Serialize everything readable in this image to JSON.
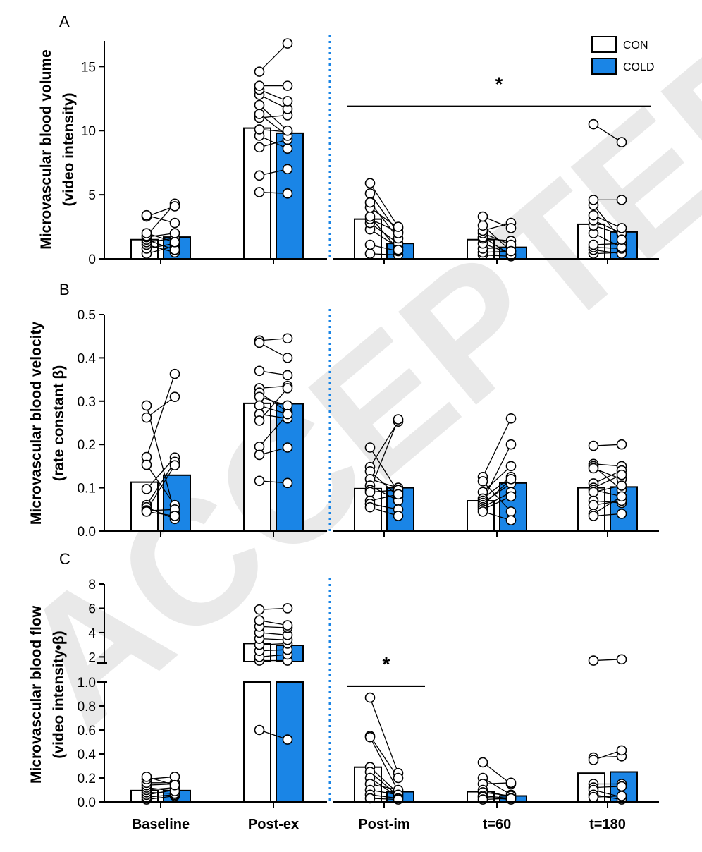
{
  "watermark": "ACCEPTED",
  "legend": [
    {
      "label": "CON",
      "color": "#ffffff"
    },
    {
      "label": "COLD",
      "color": "#1a85e6"
    }
  ],
  "x_labels": [
    "Baseline",
    "Post-ex",
    "Post-im",
    "t=60",
    "t=180"
  ],
  "chart_data": [
    {
      "type": "bar",
      "panel_label": "A",
      "title": "",
      "ylabel": [
        "Microvascular blood volume",
        "(video intensity)"
      ],
      "ylim": [
        0,
        17
      ],
      "yticks": [
        "0",
        "5",
        "10",
        "15"
      ],
      "categories": [
        "Baseline",
        "Post-ex",
        "Post-im",
        "t=60",
        "t=180"
      ],
      "series": [
        {
          "name": "CON",
          "values": [
            1.5,
            10.2,
            3.1,
            1.5,
            2.7
          ]
        },
        {
          "name": "COLD",
          "values": [
            1.7,
            9.8,
            1.2,
            0.9,
            2.1
          ]
        }
      ],
      "pairs": [
        [
          [
            0.4,
            1.0
          ],
          [
            0.8,
            1.2
          ],
          [
            1.1,
            0.5
          ],
          [
            1.3,
            1.6
          ],
          [
            1.5,
            0.7
          ],
          [
            1.7,
            2.0
          ],
          [
            1.8,
            4.3
          ],
          [
            2.0,
            1.3
          ],
          [
            3.3,
            4.1
          ],
          [
            3.4,
            2.8
          ]
        ],
        [
          [
            5.2,
            5.1
          ],
          [
            6.5,
            7.0
          ],
          [
            8.7,
            9.3
          ],
          [
            9.6,
            8.6
          ],
          [
            10.1,
            9.9
          ],
          [
            11.0,
            11.2
          ],
          [
            11.3,
            9.6
          ],
          [
            12.0,
            10.0
          ],
          [
            12.8,
            11.7
          ],
          [
            13.2,
            12.3
          ],
          [
            13.5,
            13.5
          ],
          [
            14.6,
            16.8
          ]
        ],
        [
          [
            0.4,
            0.3
          ],
          [
            1.1,
            0.6
          ],
          [
            2.3,
            0.9
          ],
          [
            2.8,
            1.2
          ],
          [
            3.1,
            2.1
          ],
          [
            3.3,
            0.7
          ],
          [
            4.0,
            2.4
          ],
          [
            4.4,
            1.6
          ],
          [
            5.1,
            2.0
          ],
          [
            5.9,
            2.5
          ]
        ],
        [
          [
            0.3,
            0.2
          ],
          [
            0.5,
            0.6
          ],
          [
            0.8,
            0.9
          ],
          [
            1.2,
            0.4
          ],
          [
            1.6,
            1.4
          ],
          [
            1.7,
            0.3
          ],
          [
            2.0,
            1.1
          ],
          [
            2.2,
            2.8
          ],
          [
            2.6,
            0.6
          ],
          [
            3.3,
            2.4
          ]
        ],
        [
          [
            0.4,
            0.5
          ],
          [
            0.7,
            0.4
          ],
          [
            0.9,
            0.8
          ],
          [
            1.1,
            1.2
          ],
          [
            2.0,
            0.9
          ],
          [
            2.6,
            1.9
          ],
          [
            3.0,
            2.0
          ],
          [
            3.4,
            2.4
          ],
          [
            4.2,
            1.5
          ],
          [
            4.6,
            4.6
          ],
          [
            10.5,
            9.1
          ]
        ]
      ],
      "annotations": [
        {
          "text": "*",
          "span": [
            "Post-im",
            "t=180"
          ],
          "y": 11.9
        }
      ]
    },
    {
      "type": "bar",
      "panel_label": "B",
      "title": "",
      "ylabel": [
        "Microvascular blood velocity",
        "(rate constant β)"
      ],
      "ylim": [
        0,
        0.5
      ],
      "yticks": [
        "0.0",
        "0.1",
        "0.2",
        "0.3",
        "0.4",
        "0.5"
      ],
      "categories": [
        "Baseline",
        "Post-ex",
        "Post-im",
        "t=60",
        "t=180"
      ],
      "series": [
        {
          "name": "CON",
          "values": [
            0.113,
            0.295,
            0.098,
            0.07,
            0.1
          ]
        },
        {
          "name": "COLD",
          "values": [
            0.129,
            0.294,
            0.1,
            0.111,
            0.102
          ]
        }
      ],
      "pairs": [
        [
          [
            0.29,
            0.04
          ],
          [
            0.262,
            0.31
          ],
          [
            0.171,
            0.363
          ],
          [
            0.153,
            0.06
          ],
          [
            0.097,
            0.17
          ],
          [
            0.06,
            0.16
          ],
          [
            0.055,
            0.028
          ],
          [
            0.048,
            0.152
          ],
          [
            0.047,
            0.05
          ],
          [
            0.045,
            0.035
          ]
        ],
        [
          [
            0.44,
            0.445
          ],
          [
            0.435,
            0.4
          ],
          [
            0.37,
            0.36
          ],
          [
            0.33,
            0.335
          ],
          [
            0.32,
            0.275
          ],
          [
            0.31,
            0.29
          ],
          [
            0.29,
            0.27
          ],
          [
            0.27,
            0.26
          ],
          [
            0.255,
            0.33
          ],
          [
            0.195,
            0.27
          ],
          [
            0.176,
            0.193
          ],
          [
            0.116,
            0.111
          ]
        ],
        [
          [
            0.193,
            0.09
          ],
          [
            0.148,
            0.253
          ],
          [
            0.138,
            0.08
          ],
          [
            0.12,
            0.1
          ],
          [
            0.105,
            0.07
          ],
          [
            0.095,
            0.258
          ],
          [
            0.09,
            0.095
          ],
          [
            0.07,
            0.085
          ],
          [
            0.063,
            0.05
          ],
          [
            0.055,
            0.035
          ]
        ],
        [
          [
            0.125,
            0.26
          ],
          [
            0.115,
            0.045
          ],
          [
            0.09,
            0.15
          ],
          [
            0.075,
            0.125
          ],
          [
            0.07,
            0.2
          ],
          [
            0.065,
            0.11
          ],
          [
            0.06,
            0.12
          ],
          [
            0.055,
            0.09
          ],
          [
            0.05,
            0.08
          ],
          [
            0.045,
            0.025
          ]
        ],
        [
          [
            0.197,
            0.2
          ],
          [
            0.155,
            0.15
          ],
          [
            0.15,
            0.095
          ],
          [
            0.145,
            0.12
          ],
          [
            0.11,
            0.14
          ],
          [
            0.1,
            0.13
          ],
          [
            0.095,
            0.08
          ],
          [
            0.09,
            0.105
          ],
          [
            0.07,
            0.065
          ],
          [
            0.06,
            0.07
          ],
          [
            0.04,
            0.08
          ],
          [
            0.035,
            0.04
          ]
        ]
      ]
    },
    {
      "type": "bar",
      "panel_label": "C",
      "title": "",
      "ylabel": [
        "Microvascular blood flow",
        "(video intensity•β)"
      ],
      "ylim": [
        0,
        8
      ],
      "axis_break": {
        "lower": [
          0,
          1.0
        ],
        "upper": [
          1.0,
          8
        ]
      },
      "yticks_lower": [
        "0.0",
        "0.2",
        "0.4",
        "0.6",
        "0.8",
        "1.0"
      ],
      "yticks_upper": [
        "2",
        "4",
        "6",
        "8"
      ],
      "categories": [
        "Baseline",
        "Post-ex",
        "Post-im",
        "t=60",
        "t=180"
      ],
      "series": [
        {
          "name": "CON",
          "values": [
            0.095,
            3.1,
            0.29,
            0.085,
            0.24
          ]
        },
        {
          "name": "COLD",
          "values": [
            0.095,
            2.95,
            0.085,
            0.05,
            0.25
          ]
        }
      ],
      "pairs": [
        [
          [
            0.02,
            0.05
          ],
          [
            0.04,
            0.06
          ],
          [
            0.06,
            0.1
          ],
          [
            0.08,
            0.07
          ],
          [
            0.1,
            0.12
          ],
          [
            0.12,
            0.09
          ],
          [
            0.14,
            0.15
          ],
          [
            0.16,
            0.16
          ],
          [
            0.19,
            0.21
          ],
          [
            0.21,
            0.14
          ]
        ],
        [
          [
            0.6,
            0.52
          ],
          [
            1.5,
            1.6
          ],
          [
            2.0,
            2.2
          ],
          [
            2.5,
            2.6
          ],
          [
            3.0,
            3.1
          ],
          [
            3.5,
            3.4
          ],
          [
            4.0,
            3.8
          ],
          [
            4.5,
            4.4
          ],
          [
            5.0,
            4.6
          ],
          [
            5.9,
            6.0
          ]
        ],
        [
          [
            0.87,
            0.24
          ],
          [
            0.55,
            0.2
          ],
          [
            0.54,
            0.09
          ],
          [
            0.29,
            0.07
          ],
          [
            0.25,
            0.05
          ],
          [
            0.2,
            0.04
          ],
          [
            0.15,
            0.1
          ],
          [
            0.1,
            0.06
          ],
          [
            0.06,
            0.03
          ],
          [
            0.03,
            0.02
          ]
        ],
        [
          [
            0.33,
            0.15
          ],
          [
            0.2,
            0.06
          ],
          [
            0.15,
            0.16
          ],
          [
            0.1,
            0.04
          ],
          [
            0.08,
            0.05
          ],
          [
            0.05,
            0.03
          ],
          [
            0.04,
            0.02
          ],
          [
            0.02,
            0.03
          ]
        ],
        [
          [
            1.5,
            1.8
          ],
          [
            0.37,
            0.38
          ],
          [
            0.35,
            0.43
          ],
          [
            0.15,
            0.15
          ],
          [
            0.12,
            0.13
          ],
          [
            0.1,
            0.04
          ],
          [
            0.06,
            0.02
          ],
          [
            0.04,
            0.05
          ]
        ]
      ],
      "annotations": [
        {
          "text": "*",
          "span": [
            "Post-im"
          ],
          "y": 0.965
        }
      ]
    }
  ]
}
